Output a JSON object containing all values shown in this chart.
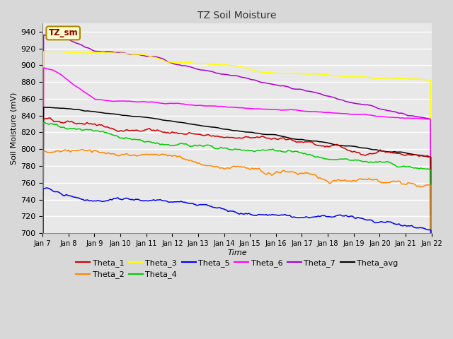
{
  "title": "TZ Soil Moisture",
  "xlabel": "Time",
  "ylabel": "Soil Moisture (mV)",
  "ylim": [
    700,
    950
  ],
  "fig_background": "#d8d8d8",
  "plot_background": "#e8e8e8",
  "grid_color": "#ffffff",
  "legend_label": "TZ_sm",
  "series_colors": {
    "Theta_1": "#cc0000",
    "Theta_2": "#ff8800",
    "Theta_3": "#ffff00",
    "Theta_4": "#00cc00",
    "Theta_5": "#0000ee",
    "Theta_6": "#ff00ff",
    "Theta_7": "#aa00cc",
    "Theta_avg": "#000000"
  },
  "x_tick_labels": [
    "Jan 7",
    "Jan 8",
    "Jan 9",
    "Jan 10",
    "Jan 11",
    "Jan 12",
    "Jan 13",
    "Jan 14",
    "Jan 15",
    "Jan 16",
    "Jan 17",
    "Jan 18",
    "Jan 19",
    "Jan 20",
    "Jan 21",
    "Jan 22"
  ],
  "n_points": 1500
}
